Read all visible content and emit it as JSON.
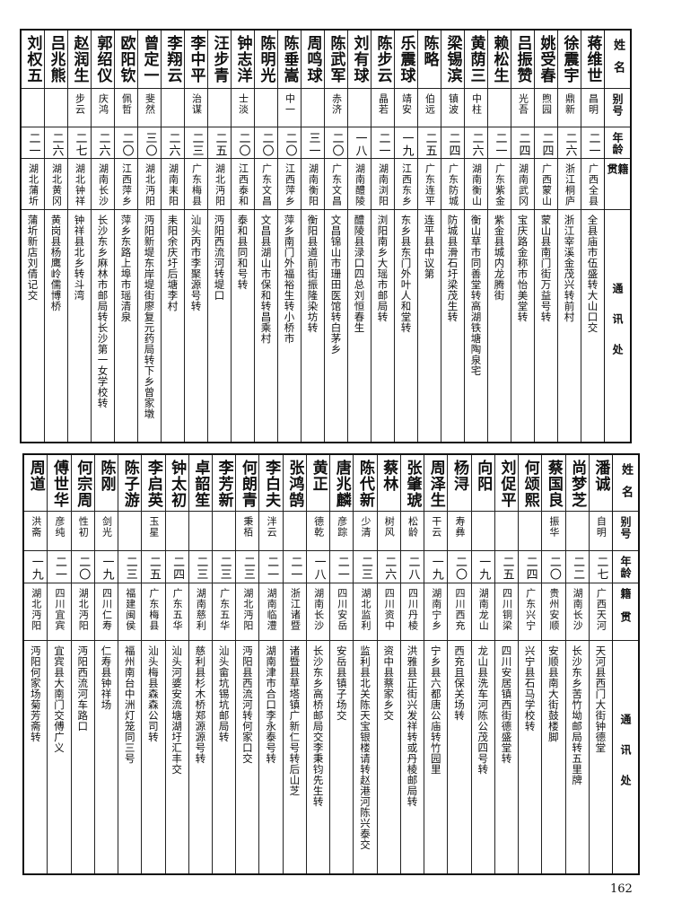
{
  "headers": {
    "name": "姓名",
    "alias": "别号",
    "age": "年龄",
    "native": "籍贯",
    "address": "通讯处"
  },
  "tables": [
    {
      "rows": [
        {
          "name": "蒋维世",
          "alias": "昌明",
          "age": "二一",
          "native": "广西全县",
          "address": "全县庙市伍盛转大山口交"
        },
        {
          "name": "徐震宇",
          "alias": "鼎新",
          "age": "二六",
          "native": "浙江桐庐",
          "address": "浙江宰溪金茂兴转前村"
        },
        {
          "name": "姚受春",
          "alias": "煦园",
          "age": "二四",
          "native": "广西蒙山",
          "address": "蒙山县南门街万益号转"
        },
        {
          "name": "吕振赞",
          "alias": "光吾",
          "age": "二四",
          "native": "湖南武冈",
          "address": "宝庆路金称市怡美堂转"
        },
        {
          "name": "赖松生",
          "alias": "",
          "age": "二一",
          "native": "广东紫金",
          "address": "紫金县城内龙腾街"
        },
        {
          "name": "黄荫三",
          "alias": "中柱",
          "age": "二六",
          "native": "湖南衡山",
          "address": "衡山草市同善堂转高湖铁塘陶泉宅"
        },
        {
          "name": "梁锡滨",
          "alias": "镇波",
          "age": "二四",
          "native": "广东防城",
          "address": "防城县滑石圩梁茂生转"
        },
        {
          "name": "陈略",
          "alias": "伯远",
          "age": "二五",
          "native": "广东连平",
          "address": "连平县中议第"
        },
        {
          "name": "乐震球",
          "alias": "靖安",
          "age": "一九",
          "native": "江西东乡",
          "address": "东乡县东门外叶人和堂转"
        },
        {
          "name": "陈步云",
          "alias": "晶若",
          "age": "二一",
          "native": "湖南浏阳",
          "address": "浏阳南乡大瑶市邮局转"
        },
        {
          "name": "刘有球",
          "alias": "",
          "age": "一八",
          "native": "湖南醴陵",
          "address": "醴陵县渌口四总刘恒春生"
        },
        {
          "name": "陈武军",
          "alias": "赤济",
          "age": "二〇",
          "native": "广东文昌",
          "address": "文昌锦山市珊田医馆转白茅乡"
        },
        {
          "name": "周鸣球",
          "alias": "",
          "age": "三一",
          "native": "湖南衡阳",
          "address": "衡阳县道前街振隆染坊转"
        },
        {
          "name": "陈垂嵩",
          "alias": "中一",
          "age": "二〇",
          "native": "江西萍乡",
          "address": "萍乡南门外福裕生转小桥市"
        },
        {
          "name": "陈明光",
          "alias": "",
          "age": "二〇",
          "native": "广东文昌",
          "address": "文昌县湖山市保和转昌乘村"
        },
        {
          "name": "钟志洋",
          "alias": "士淡",
          "age": "二〇",
          "native": "江西泰和",
          "address": "泰和县同和号转"
        },
        {
          "name": "汪步青",
          "alias": "",
          "age": "二五",
          "native": "湖北沔阳",
          "address": "沔阳西流河转堤口"
        },
        {
          "name": "李中平",
          "alias": "治谋",
          "age": "二三",
          "native": "广东梅县",
          "address": "汕头丙市李聚源号转"
        },
        {
          "name": "李翔云",
          "alias": "",
          "age": "二六",
          "native": "湖南耒阳",
          "address": "耒阳余庆圩后塘李村"
        },
        {
          "name": "曾定一",
          "alias": "斐然",
          "age": "三〇",
          "native": "湖北沔阳",
          "address": "沔阳新堤东岸堤街廖复元药局转下乡曾家墩"
        },
        {
          "name": "欧阳钦",
          "alias": "佩哲",
          "age": "二〇",
          "native": "江西萍乡",
          "address": "萍乡东路上埠市瑶清泉"
        },
        {
          "name": "郭绍仪",
          "alias": "庆鸿",
          "age": "二六",
          "native": "湖南长沙",
          "address": "长沙东乡麻林市邮局转长沙第一女学校转"
        },
        {
          "name": "赵润生",
          "alias": "步云",
          "age": "二七",
          "native": "湖北钟祥",
          "address": "钟祥县北乡转斗湾"
        },
        {
          "name": "吕兆熊",
          "alias": "",
          "age": "二六",
          "native": "湖北黄冈",
          "address": "黄岗县杨鹰岭儒博桥"
        },
        {
          "name": "刘权五",
          "alias": "",
          "age": "二一",
          "native": "湖北蒲圻",
          "address": "蒲圻新店刘倩记交"
        }
      ]
    },
    {
      "rows": [
        {
          "name": "潘诚",
          "alias": "自明",
          "age": "二七",
          "native": "广西天河",
          "address": "天河县西门大街钟德堂"
        },
        {
          "name": "尚梦芝",
          "alias": "",
          "age": "二二",
          "native": "湖南长沙",
          "address": "长沙东乡苦竹坳邮局转五里牌"
        },
        {
          "name": "蔡国良",
          "alias": "振华",
          "age": "二〇",
          "native": "贵州安顺",
          "address": "安顺县南大街鼓楼脚"
        },
        {
          "name": "何颂熙",
          "alias": "",
          "age": "二四",
          "native": "广东兴宁",
          "address": "兴宁县石马学校转"
        },
        {
          "name": "刘促平",
          "alias": "",
          "age": "二五",
          "native": "四川铜梁",
          "address": "四川安居镇西街德盛堂转"
        },
        {
          "name": "向阳",
          "alias": "",
          "age": "一九",
          "native": "湖南龙山",
          "address": "龙山县洗车河陈公茂四号转"
        },
        {
          "name": "杨浔",
          "alias": "寿彝",
          "age": "二〇",
          "native": "四川西充",
          "address": "西充且保关场转"
        },
        {
          "name": "周泽生",
          "alias": "干云",
          "age": "一九",
          "native": "湖南宁乡",
          "address": "宁乡县六都唐公庙转竹园里"
        },
        {
          "name": "张肇琥",
          "alias": "松龄",
          "age": "二八",
          "native": "四川丹棱",
          "address": "洪雅县正街兴发祥转或丹棱邮局转"
        },
        {
          "name": "蔡林",
          "alias": "树风",
          "age": "二六",
          "native": "四川资中",
          "address": "资中县蔡家乡交"
        },
        {
          "name": "陈代新",
          "alias": "少清",
          "age": "二三",
          "native": "湖北监利",
          "address": "监利县北关陈天宝银楼请转赵港河陈兴泰交"
        },
        {
          "name": "唐兆麟",
          "alias": "彦踪",
          "age": "二一",
          "native": "四川安岳",
          "address": "安岳县镇子场交"
        },
        {
          "name": "黄正",
          "alias": "德乾",
          "age": "一八",
          "native": "湖南长沙",
          "address": "长沙东乡高桥邮局交李秉钧先生转"
        },
        {
          "name": "张鸿鹄",
          "alias": "",
          "age": "二一",
          "native": "浙江诸暨",
          "address": "诸暨县草塔镇广新仁号转后山芝"
        },
        {
          "name": "李白夫",
          "alias": "泮云",
          "age": "二一",
          "native": "湖南临澧",
          "address": "湖南津市合口李永泰号转"
        },
        {
          "name": "何朗青",
          "alias": "秉栢",
          "age": "二三",
          "native": "湖北沔阳",
          "address": "沔阳县西流河转何家口交"
        },
        {
          "name": "李芳新",
          "alias": "",
          "age": "二三",
          "native": "广东五华",
          "address": "汕头畲坑锡坑邮局转"
        },
        {
          "name": "卓韶笙",
          "alias": "",
          "age": "二三",
          "native": "湖南慈利",
          "address": "慈利县杉木桥郑源源号转"
        },
        {
          "name": "钟太初",
          "alias": "",
          "age": "二四",
          "native": "广东五华",
          "address": "汕头河婆安流塘湖圩汇丰交"
        },
        {
          "name": "李启英",
          "alias": "玉星",
          "age": "二五",
          "native": "广东梅县",
          "address": "汕头梅县森森公司转"
        },
        {
          "name": "陈子游",
          "alias": "",
          "age": "二三",
          "native": "福建闽侯",
          "address": "福州南台中洲灯笼同三号"
        },
        {
          "name": "陈刚",
          "alias": "剑光",
          "age": "一九",
          "native": "四川仁寿",
          "address": "仁寿县钟祥场"
        },
        {
          "name": "何宗周",
          "alias": "性初",
          "age": "二〇",
          "native": "湖北沔阳",
          "address": "沔阳西流河车路口"
        },
        {
          "name": "傅世华",
          "alias": "彦纯",
          "age": "二一",
          "native": "四川宜宾",
          "address": "宜宾县大南门交傅广义"
        },
        {
          "name": "周道",
          "alias": "洪斋",
          "age": "一九",
          "native": "湖北沔阳",
          "address": "沔阳何家场菊芳斋转"
        }
      ]
    }
  ],
  "page_number": "162"
}
